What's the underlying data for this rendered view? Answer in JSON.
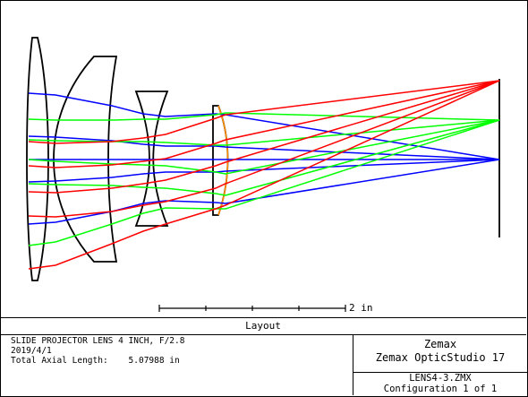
{
  "diagram": {
    "title": "Layout",
    "scale_label": "2 in",
    "colors": {
      "field_1": "#0000ff",
      "field_2": "#00ff00",
      "field_3": "#ff0000",
      "stop": "#ff8c00",
      "lens": "#000000"
    }
  },
  "footer": {
    "lines": [
      "SLIDE PROJECTOR LENS 4 INCH, F/2.8",
      "2019/4/1",
      "Total Axial Length:    5.07988 in"
    ],
    "brand_1": "Zemax",
    "brand_2": "Zemax OpticStudio 17",
    "file_name": "LENS4-3.ZMX",
    "configuration": "Configuration 1 of 1"
  }
}
